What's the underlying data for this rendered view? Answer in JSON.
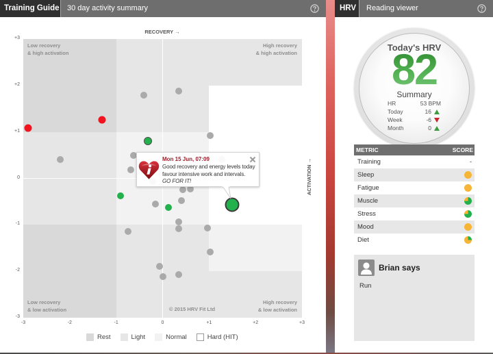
{
  "left_panel": {
    "tab_label": "Training Guide",
    "title": "30 day activity summary",
    "help_icon": "question-circle-icon"
  },
  "right_panel": {
    "tab_label": "HRV",
    "title": "Reading viewer",
    "help_icon": "question-circle-icon"
  },
  "chart_data": {
    "type": "scatter",
    "title": "30 day activity summary",
    "xlabel": "RECOVERY →",
    "ylabel": "ACTIVATION →",
    "xlim": [
      -3,
      3
    ],
    "ylim": [
      -3,
      3
    ],
    "x_ticks": [
      "-3",
      "-2",
      "-1",
      "0",
      "+1",
      "+2",
      "+3"
    ],
    "y_ticks": [
      "+3",
      "+2",
      "+1",
      "0",
      "-1",
      "-2",
      "-3"
    ],
    "grid": false,
    "axis_lines_at_zero": true,
    "quadrant_labels": {
      "top_left": [
        "Low recovery",
        "& high activation"
      ],
      "top_right": [
        "High recovery",
        "& high activation"
      ],
      "bottom_left": [
        "Low recovery",
        "& low activation"
      ],
      "bottom_right": [
        "High recovery",
        "& low activation"
      ]
    },
    "copyright": "© 2015 HRV Fit Ltd",
    "legend_position": "bottom",
    "legend": [
      {
        "label": "Rest",
        "color": "#d9d9d9"
      },
      {
        "label": "Light",
        "color": "#e6e6e6"
      },
      {
        "label": "Normal",
        "color": "#f2f2f2"
      },
      {
        "label": "Hard (HIT)",
        "color": "#ffffff"
      }
    ],
    "zones": [
      {
        "type": "Rest",
        "x": [
          -3,
          -1
        ],
        "y": [
          1,
          3
        ]
      },
      {
        "type": "Light",
        "x": [
          -1,
          1
        ],
        "y": [
          1,
          3
        ]
      },
      {
        "type": "Light",
        "x": [
          1,
          3
        ],
        "y": [
          2,
          3
        ]
      },
      {
        "type": "Hard (HIT)",
        "x": [
          1,
          3
        ],
        "y": [
          -1,
          2
        ]
      },
      {
        "type": "Light",
        "x": [
          -3,
          -1
        ],
        "y": [
          -1,
          1
        ]
      },
      {
        "type": "Normal",
        "x": [
          -1,
          1
        ],
        "y": [
          -1,
          1
        ]
      },
      {
        "type": "Rest",
        "x": [
          -3,
          -1
        ],
        "y": [
          -3,
          -1
        ]
      },
      {
        "type": "Light",
        "x": [
          -1,
          1
        ],
        "y": [
          -3,
          -1
        ]
      },
      {
        "type": "Normal",
        "x": [
          1,
          3
        ],
        "y": [
          -2,
          -1
        ]
      },
      {
        "type": "Light",
        "x": [
          1,
          3
        ],
        "y": [
          -3,
          -2
        ]
      }
    ],
    "point_colors": {
      "gray": "#aaaaaa",
      "red": "#f0141e",
      "green": "#22b14c"
    },
    "series": [
      {
        "name": "gray",
        "points": [
          {
            "x": -0.4,
            "y": 1.79
          },
          {
            "x": 0.34,
            "y": 1.88
          },
          {
            "x": 1.03,
            "y": 0.92
          },
          {
            "x": -2.21,
            "y": 0.41
          },
          {
            "x": -0.63,
            "y": 0.49
          },
          {
            "x": -0.69,
            "y": 0.18
          },
          {
            "x": 1.27,
            "y": 0.41
          },
          {
            "x": -0.21,
            "y": -0.07
          },
          {
            "x": 0.43,
            "y": -0.24
          },
          {
            "x": 0.59,
            "y": -0.23
          },
          {
            "x": 0.4,
            "y": -0.48
          },
          {
            "x": -0.16,
            "y": -0.55
          },
          {
            "x": 0.35,
            "y": -0.94
          },
          {
            "x": 0.35,
            "y": -1.08
          },
          {
            "x": 0.97,
            "y": -1.07
          },
          {
            "x": -0.75,
            "y": -1.14
          },
          {
            "x": 1.02,
            "y": -1.58
          },
          {
            "x": -0.07,
            "y": -1.89
          },
          {
            "x": 0.0,
            "y": -2.11
          },
          {
            "x": 0.35,
            "y": -2.07
          }
        ]
      },
      {
        "name": "red",
        "points": [
          {
            "x": -2.89,
            "y": 1.08
          },
          {
            "x": -1.31,
            "y": 1.26
          }
        ]
      },
      {
        "name": "green",
        "points": [
          {
            "x": -0.32,
            "y": 0.8,
            "outlined": true
          },
          {
            "x": -0.9,
            "y": -0.38
          },
          {
            "x": 0.12,
            "y": -0.63
          }
        ]
      }
    ],
    "selected_point": {
      "x": 1.49,
      "y": -0.57,
      "series": "green"
    }
  },
  "tooltip": {
    "icon": "heart-info-icon",
    "date": "Mon 15 Jun, 07:09",
    "line1": "Good recovery and energy levels today",
    "line2": "favour intensive work and intervals.",
    "emphasis": "GO FOR IT!",
    "close_icon": "close-icon"
  },
  "hrv": {
    "title": "Today's HRV",
    "value": "82",
    "summary_title": "Summary",
    "rows": [
      {
        "label": "HR",
        "value": "53 BPM"
      },
      {
        "label": "Today",
        "value": "16",
        "trend": "up"
      },
      {
        "label": "Week",
        "value": "-6",
        "trend": "down"
      },
      {
        "label": "Month",
        "value": "0",
        "trend": "up"
      }
    ]
  },
  "metrics": {
    "header_metric": "METRIC",
    "header_score": "SCORE",
    "score_colors": {
      "green": "#22b04a",
      "orange": "#f7b538"
    },
    "rows": [
      {
        "name": "Training",
        "score": "-"
      },
      {
        "name": "Sleep",
        "green_pct": 0
      },
      {
        "name": "Fatigue",
        "green_pct": 0
      },
      {
        "name": "Muscle",
        "green_pct": 75
      },
      {
        "name": "Stress",
        "green_pct": 75
      },
      {
        "name": "Mood",
        "green_pct": 0
      },
      {
        "name": "Diet",
        "green_pct": 25
      }
    ]
  },
  "coach": {
    "avatar_icon": "user-silhouette-icon",
    "title": "Brian says",
    "message": "Run"
  }
}
